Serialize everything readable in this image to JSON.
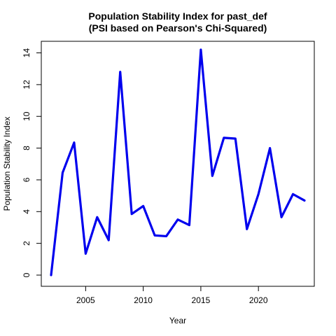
{
  "chart_data": {
    "type": "line",
    "title": "Population Stability Index for past_def",
    "subtitle": "(PSI based on Pearson's Chi-Squared)",
    "xlabel": "Year",
    "ylabel": "Population Stability Index",
    "xlim": [
      2002,
      2024
    ],
    "ylim": [
      0,
      14.2
    ],
    "xticks": [
      2005,
      2010,
      2015,
      2020
    ],
    "yticks": [
      0,
      2,
      4,
      6,
      8,
      10,
      12,
      14
    ],
    "x": [
      2002,
      2003,
      2004,
      2005,
      2006,
      2007,
      2008,
      2009,
      2010,
      2011,
      2012,
      2013,
      2014,
      2015,
      2016,
      2017,
      2018,
      2019,
      2020,
      2021,
      2022,
      2023,
      2024
    ],
    "series": [
      {
        "values": [
          0.0,
          6.45,
          8.35,
          1.35,
          3.65,
          2.2,
          12.8,
          3.85,
          4.35,
          2.5,
          2.45,
          3.5,
          3.15,
          14.2,
          6.25,
          8.65,
          8.6,
          2.9,
          5.1,
          8.0,
          3.65,
          5.1,
          4.7
        ],
        "color": "#0000ee"
      }
    ],
    "grid": false,
    "legend": "none"
  }
}
